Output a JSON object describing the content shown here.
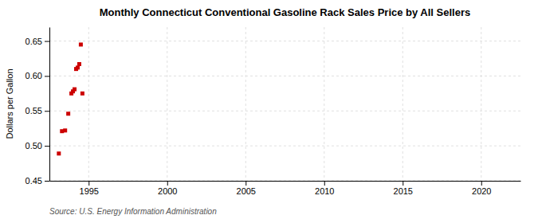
{
  "chart_data": {
    "type": "scatter",
    "title": "Monthly Connecticut Conventional Gasoline Rack Sales Price by All Sellers",
    "y_label": "Dollars per Gallon",
    "annotations": [
      "Source: U.S. Energy Information Administration"
    ],
    "x": [
      1993.1,
      1993.3,
      1993.5,
      1993.7,
      1993.9,
      1994.0,
      1994.1,
      1994.2,
      1994.3,
      1994.4,
      1994.5,
      1994.6
    ],
    "values": [
      0.489,
      0.521,
      0.522,
      0.546,
      0.575,
      0.578,
      0.581,
      0.61,
      0.612,
      0.617,
      0.645,
      0.575
    ],
    "color": "#cc0000",
    "marker": "square",
    "xlim": [
      1992.5,
      2022.5
    ],
    "ylim": [
      0.45,
      0.67
    ],
    "xticks": [
      1995,
      2000,
      2005,
      2010,
      2015,
      2020
    ],
    "yticks": [
      0.45,
      {
        "value": 0.5,
        "label": "0.50"
      },
      0.55,
      {
        "value": 0.6,
        "label": "0.60"
      },
      0.65
    ],
    "grid": true
  }
}
